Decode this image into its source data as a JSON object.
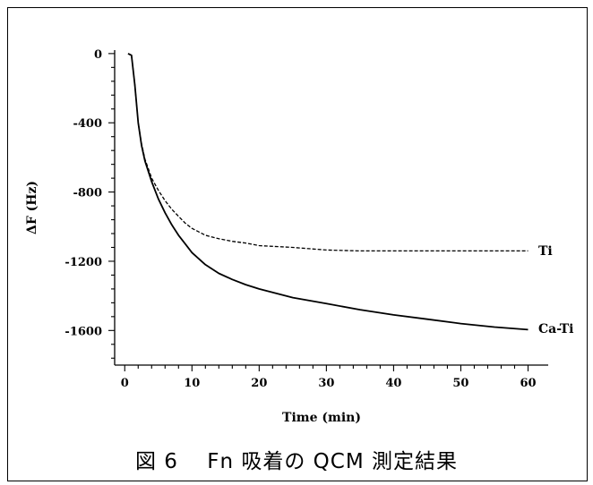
{
  "caption": "図 6　 Fn 吸着の QCM 測定結果",
  "chart_data": {
    "type": "line",
    "title": "",
    "xlabel": "Time (min)",
    "ylabel": "ΔF (Hz)",
    "xlim": [
      -1.5,
      63
    ],
    "ylim": [
      -1800,
      20
    ],
    "x_ticks": [
      0,
      10,
      20,
      30,
      40,
      50,
      60
    ],
    "y_ticks": [
      0,
      -400,
      -800,
      -1200,
      -1600
    ],
    "grid": false,
    "series": [
      {
        "name": "Ti",
        "style": "dashed",
        "x": [
          0.5,
          1,
          1.5,
          2,
          2.5,
          3,
          4,
          5,
          6,
          7,
          8,
          9,
          10,
          12,
          14,
          16,
          18,
          20,
          25,
          30,
          35,
          40,
          45,
          50,
          55,
          60
        ],
        "values": [
          0,
          -10,
          -180,
          -400,
          -520,
          -610,
          -720,
          -790,
          -850,
          -900,
          -940,
          -980,
          -1010,
          -1050,
          -1070,
          -1085,
          -1095,
          -1110,
          -1120,
          -1135,
          -1140,
          -1140,
          -1140,
          -1140,
          -1140,
          -1140
        ]
      },
      {
        "name": "Ca-Ti",
        "style": "solid",
        "x": [
          0.5,
          1,
          1.5,
          2,
          2.5,
          3,
          4,
          5,
          6,
          7,
          8,
          9,
          10,
          12,
          14,
          16,
          18,
          20,
          25,
          30,
          35,
          40,
          45,
          50,
          55,
          60
        ],
        "values": [
          0,
          -10,
          -180,
          -400,
          -530,
          -620,
          -740,
          -840,
          -920,
          -990,
          -1050,
          -1100,
          -1150,
          -1220,
          -1270,
          -1305,
          -1335,
          -1360,
          -1410,
          -1445,
          -1480,
          -1510,
          -1535,
          -1560,
          -1580,
          -1595
        ]
      }
    ]
  }
}
